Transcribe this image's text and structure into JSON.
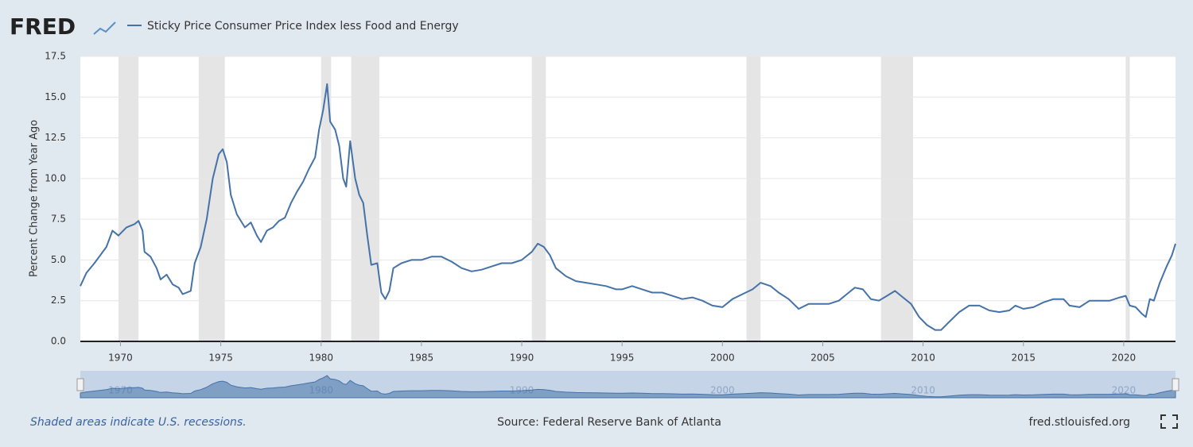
{
  "chart_data": {
    "type": "line",
    "logo": "FRED",
    "y_label": "Percent Change from Year Ago",
    "note": "Shaded areas indicate U.S. recessions.",
    "source": "Source: Federal Reserve Bank of Atlanta",
    "site": "fred.stlouisfed.org",
    "x": [
      1968.0,
      1968.3,
      1968.7,
      1969.0,
      1969.3,
      1969.6,
      1969.9,
      1970.3,
      1970.7,
      1970.9,
      1971.1,
      1971.2,
      1971.5,
      1971.8,
      1972.0,
      1972.3,
      1972.6,
      1972.9,
      1973.1,
      1973.5,
      1973.7,
      1974.0,
      1974.3,
      1974.6,
      1974.9,
      1975.1,
      1975.3,
      1975.5,
      1975.8,
      1976.2,
      1976.5,
      1976.8,
      1977.0,
      1977.3,
      1977.6,
      1977.9,
      1978.2,
      1978.5,
      1978.8,
      1979.1,
      1979.4,
      1979.7,
      1979.9,
      1980.1,
      1980.3,
      1980.45,
      1980.7,
      1980.9,
      1981.1,
      1981.25,
      1981.45,
      1981.7,
      1981.9,
      1982.1,
      1982.3,
      1982.5,
      1982.8,
      1983.0,
      1983.2,
      1983.4,
      1983.6,
      1984.0,
      1984.5,
      1985.0,
      1985.5,
      1986.0,
      1986.5,
      1987.0,
      1987.5,
      1988.0,
      1988.5,
      1989.0,
      1989.5,
      1990.0,
      1990.5,
      1990.8,
      1991.1,
      1991.4,
      1991.7,
      1992.2,
      1992.7,
      1993.2,
      1993.7,
      1994.2,
      1994.7,
      1995.0,
      1995.5,
      1996.0,
      1996.5,
      1997.0,
      1997.5,
      1998.0,
      1998.5,
      1999.0,
      1999.5,
      2000.0,
      2000.5,
      2001.0,
      2001.5,
      2001.9,
      2002.4,
      2002.8,
      2003.3,
      2003.8,
      2004.3,
      2004.8,
      2005.3,
      2005.8,
      2006.2,
      2006.6,
      2007.0,
      2007.4,
      2007.8,
      2008.2,
      2008.6,
      2009.0,
      2009.4,
      2009.8,
      2010.2,
      2010.6,
      2010.9,
      2011.3,
      2011.8,
      2012.3,
      2012.8,
      2013.3,
      2013.8,
      2014.3,
      2014.6,
      2015.0,
      2015.5,
      2016.0,
      2016.5,
      2017.0,
      2017.3,
      2017.8,
      2018.3,
      2018.8,
      2019.3,
      2019.8,
      2020.1,
      2020.3,
      2020.6,
      2020.9,
      2021.1,
      2021.3,
      2021.5,
      2021.8,
      2022.1,
      2022.4,
      2022.58
    ],
    "series": [
      {
        "name": "Sticky Price Consumer Price Index less Food and Energy",
        "color": "#4572a7",
        "values": [
          3.4,
          4.2,
          4.8,
          5.3,
          5.8,
          6.8,
          6.5,
          7.0,
          7.2,
          7.4,
          6.8,
          5.5,
          5.2,
          4.5,
          3.8,
          4.1,
          3.5,
          3.3,
          2.9,
          3.1,
          4.8,
          5.8,
          7.5,
          10.0,
          11.5,
          11.8,
          11.0,
          9.0,
          7.8,
          7.0,
          7.3,
          6.5,
          6.1,
          6.8,
          7.0,
          7.4,
          7.6,
          8.5,
          9.2,
          9.8,
          10.6,
          11.3,
          13.0,
          14.2,
          15.8,
          13.5,
          13.0,
          12.0,
          10.0,
          9.5,
          12.3,
          10.0,
          9.0,
          8.5,
          6.5,
          4.7,
          4.8,
          3.0,
          2.6,
          3.1,
          4.5,
          4.8,
          5.0,
          5.0,
          5.2,
          5.2,
          4.9,
          4.5,
          4.3,
          4.4,
          4.6,
          4.8,
          4.8,
          5.0,
          5.5,
          6.0,
          5.8,
          5.3,
          4.5,
          4.0,
          3.7,
          3.6,
          3.5,
          3.4,
          3.2,
          3.2,
          3.4,
          3.2,
          3.0,
          3.0,
          2.8,
          2.6,
          2.7,
          2.5,
          2.2,
          2.1,
          2.6,
          2.9,
          3.2,
          3.6,
          3.4,
          3.0,
          2.6,
          2.0,
          2.3,
          2.3,
          2.3,
          2.5,
          2.9,
          3.3,
          3.2,
          2.6,
          2.5,
          2.8,
          3.1,
          2.7,
          2.3,
          1.5,
          1.0,
          0.7,
          0.7,
          1.2,
          1.8,
          2.2,
          2.2,
          1.9,
          1.8,
          1.9,
          2.2,
          2.0,
          2.1,
          2.4,
          2.6,
          2.6,
          2.2,
          2.1,
          2.5,
          2.5,
          2.5,
          2.7,
          2.8,
          2.2,
          2.1,
          1.7,
          1.5,
          2.6,
          2.5,
          3.6,
          4.5,
          5.3,
          6.0
        ]
      }
    ],
    "recessions": [
      [
        1969.9,
        1970.9
      ],
      [
        1973.9,
        1975.2
      ],
      [
        1980.0,
        1980.5
      ],
      [
        1981.5,
        1982.9
      ],
      [
        1990.5,
        1991.2
      ],
      [
        2001.2,
        2001.9
      ],
      [
        2007.9,
        2009.5
      ],
      [
        2020.1,
        2020.3
      ]
    ],
    "xlim": [
      1968.0,
      2022.58
    ],
    "xticks": [
      1970,
      1975,
      1980,
      1985,
      1990,
      1995,
      2000,
      2005,
      2010,
      2015,
      2020
    ],
    "ylim": [
      0,
      17.5
    ],
    "yticks": [
      {
        "value": 0,
        "label": "0.0"
      },
      2.5,
      {
        "value": 5,
        "label": "5.0"
      },
      7.5,
      {
        "value": 10,
        "label": "10.0"
      },
      12.5,
      {
        "value": 15,
        "label": "15.0"
      },
      17.5
    ],
    "grid": true
  }
}
